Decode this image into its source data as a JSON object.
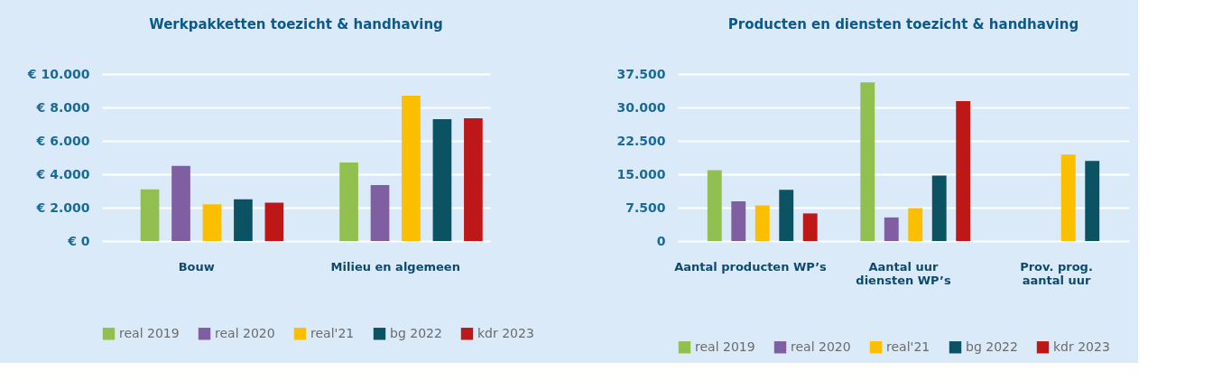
{
  "chart_data": [
    {
      "type": "bar",
      "title": "Werkpakketten toezicht & handhaving",
      "categories": [
        "Bouw",
        "Milieu en algemeen"
      ],
      "series": [
        {
          "name": "real 2019",
          "color": "#92c050",
          "values": [
            3100,
            4700
          ]
        },
        {
          "name": "real 2020",
          "color": "#7f5fa2",
          "values": [
            4500,
            3350
          ]
        },
        {
          "name": "real'21",
          "color": "#fbbf00",
          "values": [
            2200,
            8700
          ]
        },
        {
          "name": "bg 2022",
          "color": "#0b5363",
          "values": [
            2500,
            7300
          ]
        },
        {
          "name": "kdr 2023",
          "color": "#be1717",
          "values": [
            2300,
            7350
          ]
        }
      ],
      "ylim": [
        0,
        10000
      ],
      "yticks": [
        {
          "value": 0,
          "label": "€ 0"
        },
        {
          "value": 2000,
          "label": "€ 2.000"
        },
        {
          "value": 4000,
          "label": "€ 4.000"
        },
        {
          "value": 6000,
          "label": "€ 6.000"
        },
        {
          "value": 8000,
          "label": "€ 8.000"
        },
        {
          "value": 10000,
          "label": "€ 10.000"
        }
      ],
      "grid": "y",
      "legend": "bottom"
    },
    {
      "type": "bar",
      "title": "Producten en diensten toezicht & handhaving",
      "categories": [
        "Aantal producten WP’s",
        "Aantal uur diensten WP’s",
        "Prov. prog. aantal uur"
      ],
      "series": [
        {
          "name": "real 2019",
          "color": "#92c050",
          "values": [
            15900,
            35600,
            null
          ]
        },
        {
          "name": "real 2020",
          "color": "#7f5fa2",
          "values": [
            8900,
            5300,
            null
          ]
        },
        {
          "name": "real'21",
          "color": "#fbbf00",
          "values": [
            8000,
            7400,
            19400
          ]
        },
        {
          "name": "bg 2022",
          "color": "#0b5363",
          "values": [
            11500,
            14700,
            18000
          ]
        },
        {
          "name": "kdr 2023",
          "color": "#be1717",
          "values": [
            6200,
            31400,
            null
          ]
        }
      ],
      "ylim": [
        0,
        37500
      ],
      "yticks": [
        0,
        {
          "value": 7500,
          "label": "7.500"
        },
        {
          "value": 15000,
          "label": "15.000"
        },
        {
          "value": 22500,
          "label": "22.500"
        },
        {
          "value": 30000,
          "label": "30.000"
        },
        {
          "value": 37500,
          "label": "37.500"
        }
      ],
      "grid": "y",
      "legend": "bottom"
    }
  ]
}
